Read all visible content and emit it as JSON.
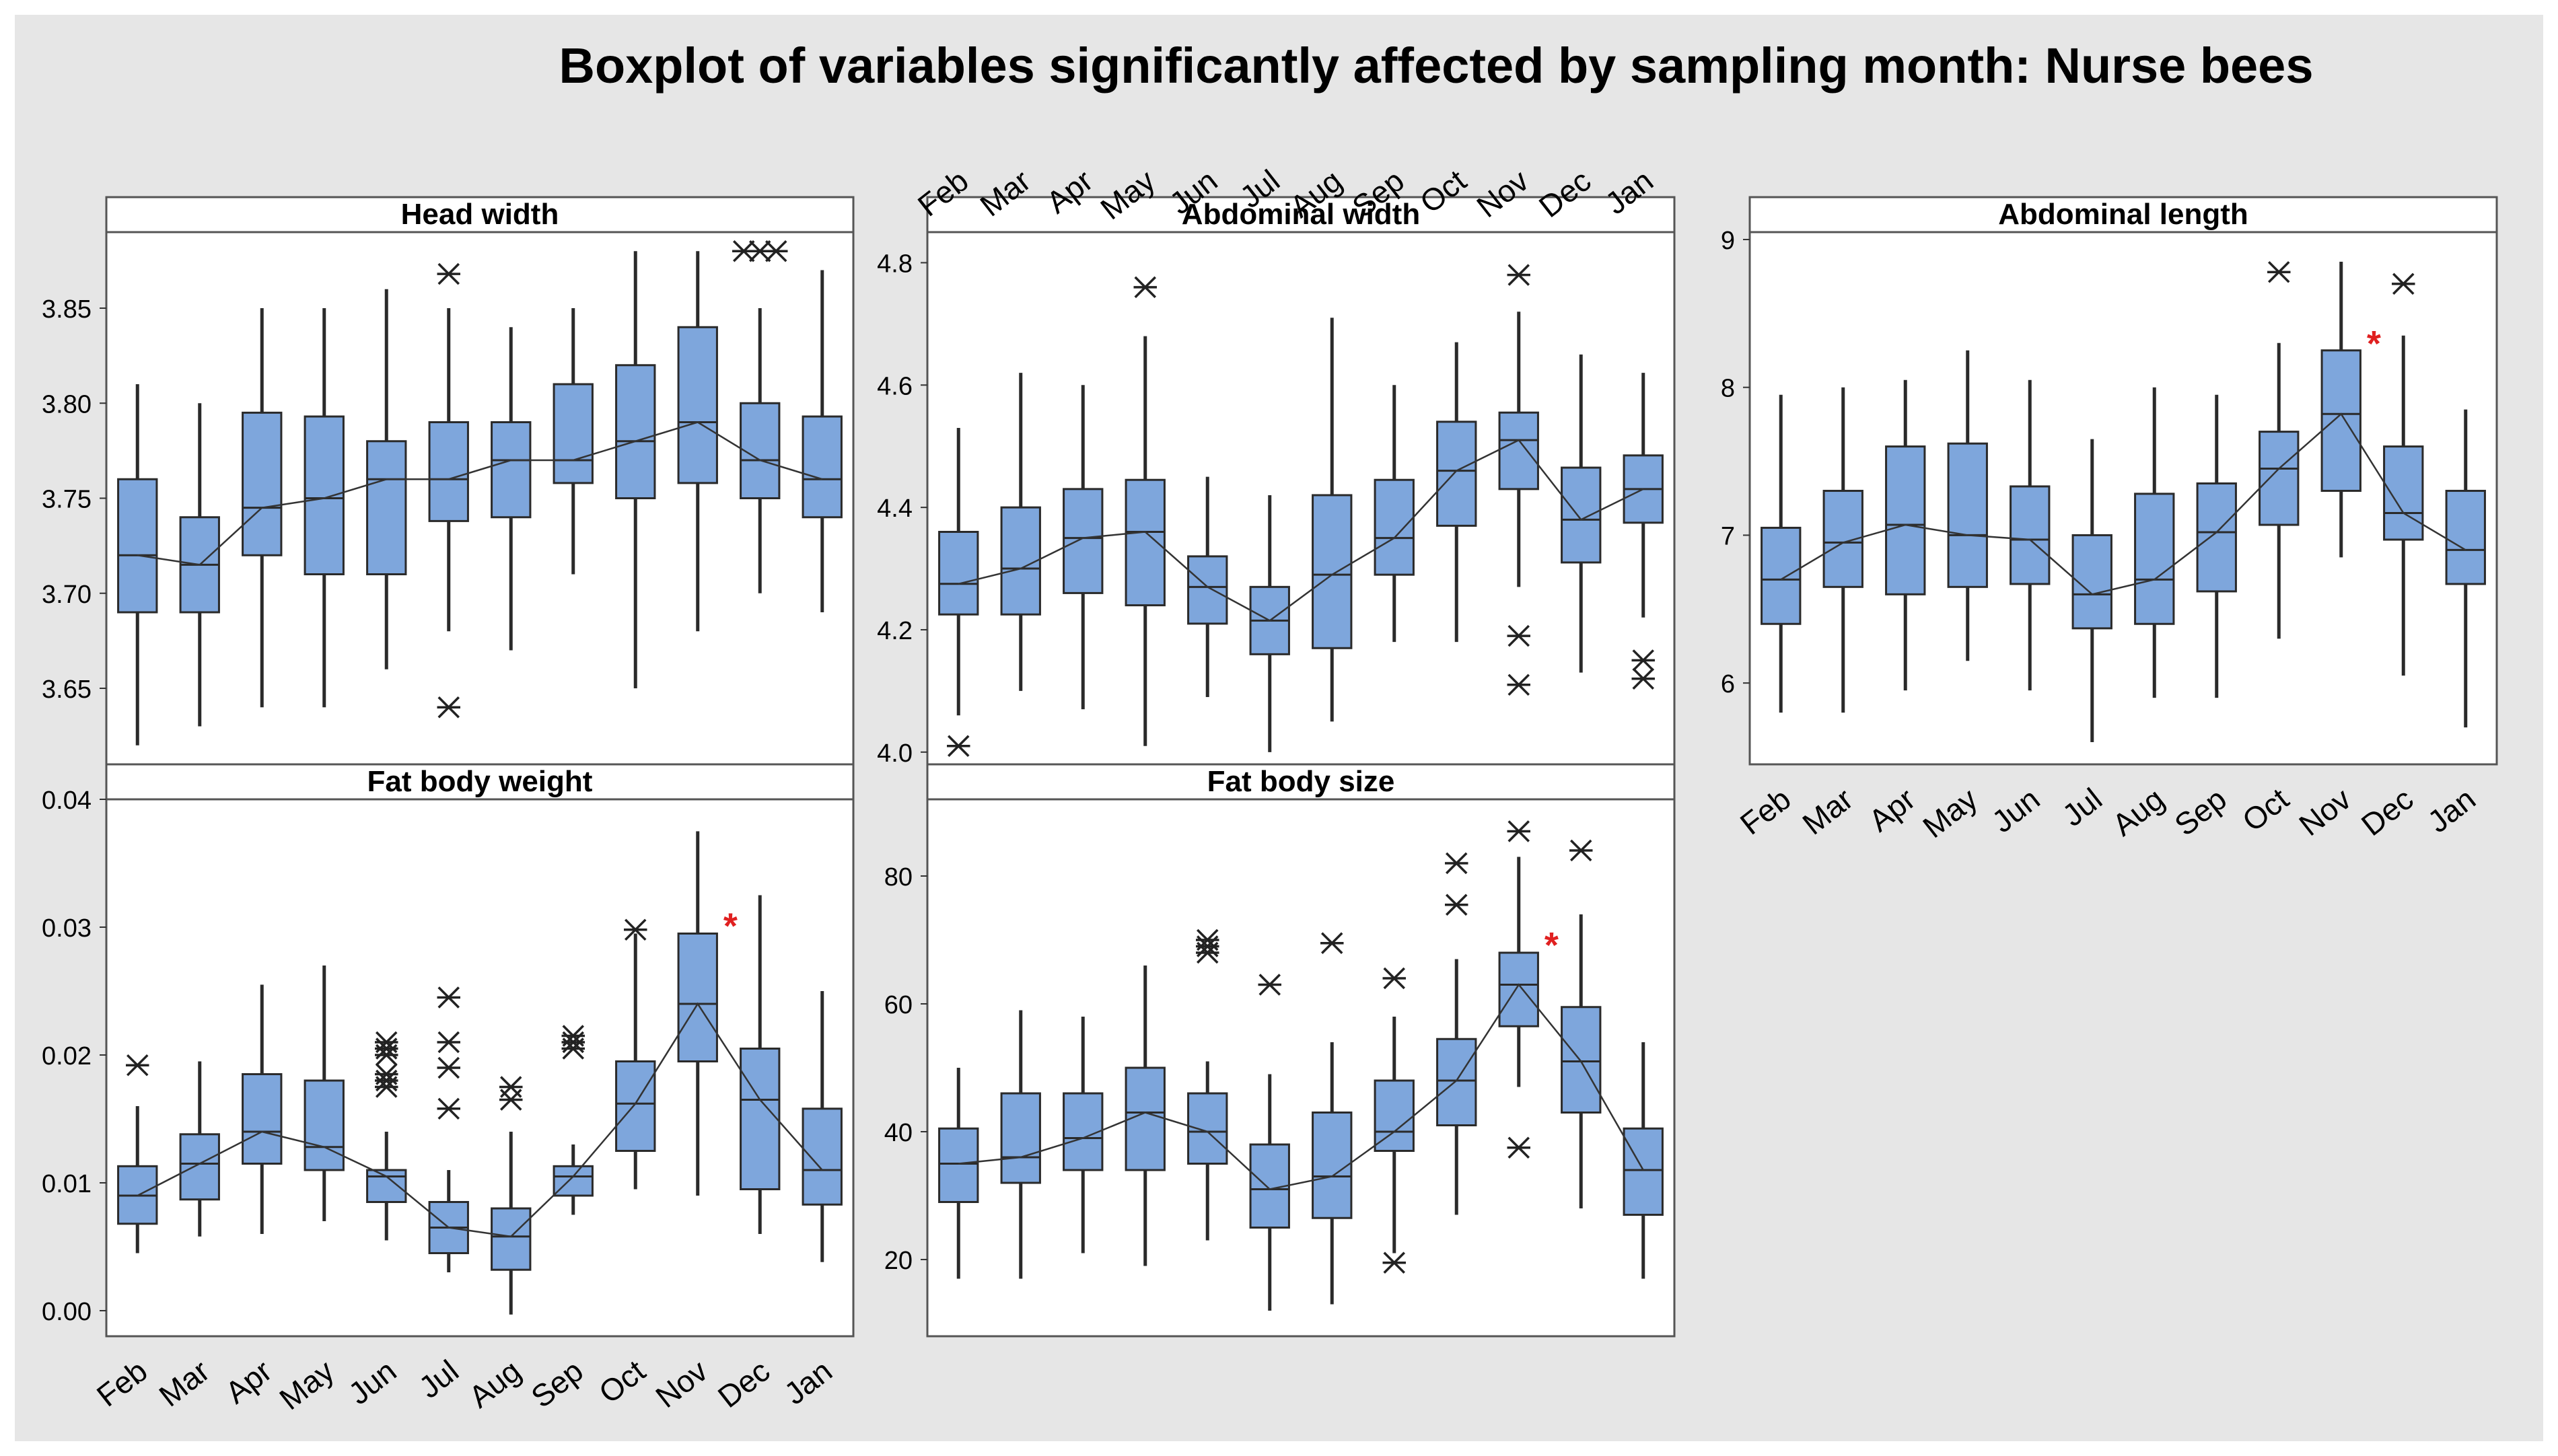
{
  "title": "Boxplot of variables significantly affected by sampling month: Nurse bees",
  "colors": {
    "background": "#e6e6e6",
    "panel": "#ffffff",
    "box_fill": "#7ea6dc",
    "line": "#2a2a2a",
    "highlight": "#e02020"
  },
  "months": [
    "Feb",
    "Mar",
    "Apr",
    "May",
    "Jun",
    "Jul",
    "Aug",
    "Sep",
    "Oct",
    "Nov",
    "Dec",
    "Jan"
  ],
  "chart_data": [
    {
      "type": "box",
      "title": "Head width",
      "ylim": [
        3.61,
        3.89
      ],
      "yticks": [
        3.65,
        3.7,
        3.75,
        3.8,
        3.85
      ],
      "tick_labels": [
        "3.65",
        "3.70",
        "3.75",
        "3.80",
        "3.85"
      ],
      "series": [
        {
          "month": "Feb",
          "min": 3.62,
          "q1": 3.69,
          "median": 3.72,
          "q3": 3.76,
          "max": 3.81,
          "outliers": []
        },
        {
          "month": "Mar",
          "min": 3.63,
          "q1": 3.69,
          "median": 3.715,
          "q3": 3.74,
          "max": 3.8,
          "outliers": []
        },
        {
          "month": "Apr",
          "min": 3.64,
          "q1": 3.72,
          "median": 3.745,
          "q3": 3.795,
          "max": 3.85,
          "outliers": []
        },
        {
          "month": "May",
          "min": 3.64,
          "q1": 3.71,
          "median": 3.75,
          "q3": 3.793,
          "max": 3.85,
          "outliers": []
        },
        {
          "month": "Jun",
          "min": 3.66,
          "q1": 3.71,
          "median": 3.76,
          "q3": 3.78,
          "max": 3.86,
          "outliers": []
        },
        {
          "month": "Jul",
          "min": 3.68,
          "q1": 3.738,
          "median": 3.76,
          "q3": 3.79,
          "max": 3.85,
          "outliers": [
            3.868,
            3.64
          ]
        },
        {
          "month": "Aug",
          "min": 3.67,
          "q1": 3.74,
          "median": 3.77,
          "q3": 3.79,
          "max": 3.84,
          "outliers": []
        },
        {
          "month": "Sep",
          "min": 3.71,
          "q1": 3.758,
          "median": 3.77,
          "q3": 3.81,
          "max": 3.85,
          "outliers": []
        },
        {
          "month": "Oct",
          "min": 3.65,
          "q1": 3.75,
          "median": 3.78,
          "q3": 3.82,
          "max": 3.88,
          "outliers": []
        },
        {
          "month": "Nov",
          "min": 3.68,
          "q1": 3.758,
          "median": 3.79,
          "q3": 3.84,
          "max": 3.88,
          "outliers": []
        },
        {
          "month": "Dec",
          "min": 3.7,
          "q1": 3.75,
          "median": 3.77,
          "q3": 3.8,
          "max": 3.85,
          "outliers": [
            3.88,
            3.88,
            3.88
          ]
        },
        {
          "month": "Jan",
          "min": 3.69,
          "q1": 3.74,
          "median": 3.76,
          "q3": 3.793,
          "max": 3.87,
          "outliers": []
        }
      ],
      "red_outliers": []
    },
    {
      "type": "box",
      "title": "Abdominal width",
      "ylim": [
        3.98,
        4.85
      ],
      "yticks": [
        4.0,
        4.2,
        4.4,
        4.6,
        4.8
      ],
      "tick_labels": [
        "4.0",
        "4.2",
        "4.4",
        "4.6",
        "4.8"
      ],
      "series": [
        {
          "month": "Feb",
          "min": 4.06,
          "q1": 4.225,
          "median": 4.275,
          "q3": 4.36,
          "max": 4.53,
          "outliers": [
            4.01
          ]
        },
        {
          "month": "Mar",
          "min": 4.1,
          "q1": 4.225,
          "median": 4.3,
          "q3": 4.4,
          "max": 4.62,
          "outliers": []
        },
        {
          "month": "Apr",
          "min": 4.07,
          "q1": 4.26,
          "median": 4.35,
          "q3": 4.43,
          "max": 4.6,
          "outliers": []
        },
        {
          "month": "May",
          "min": 4.01,
          "q1": 4.24,
          "median": 4.36,
          "q3": 4.445,
          "max": 4.68,
          "outliers": [
            4.76
          ]
        },
        {
          "month": "Jun",
          "min": 4.09,
          "q1": 4.21,
          "median": 4.27,
          "q3": 4.32,
          "max": 4.45,
          "outliers": []
        },
        {
          "month": "Jul",
          "min": 4.0,
          "q1": 4.16,
          "median": 4.215,
          "q3": 4.27,
          "max": 4.42,
          "outliers": []
        },
        {
          "month": "Aug",
          "min": 4.05,
          "q1": 4.17,
          "median": 4.29,
          "q3": 4.42,
          "max": 4.71,
          "outliers": []
        },
        {
          "month": "Sep",
          "min": 4.18,
          "q1": 4.29,
          "median": 4.35,
          "q3": 4.445,
          "max": 4.6,
          "outliers": []
        },
        {
          "month": "Oct",
          "min": 4.18,
          "q1": 4.37,
          "median": 4.46,
          "q3": 4.54,
          "max": 4.67,
          "outliers": []
        },
        {
          "month": "Nov",
          "min": 4.27,
          "q1": 4.43,
          "median": 4.51,
          "q3": 4.555,
          "max": 4.72,
          "outliers": [
            4.78,
            4.19,
            4.11
          ]
        },
        {
          "month": "Dec",
          "min": 4.13,
          "q1": 4.31,
          "median": 4.38,
          "q3": 4.465,
          "max": 4.65,
          "outliers": []
        },
        {
          "month": "Jan",
          "min": 4.22,
          "q1": 4.375,
          "median": 4.43,
          "q3": 4.485,
          "max": 4.62,
          "outliers": [
            4.15,
            4.12
          ]
        }
      ],
      "red_outliers": []
    },
    {
      "type": "box",
      "title": "Abdominal length",
      "ylim": [
        5.45,
        9.05
      ],
      "yticks": [
        6,
        7,
        8,
        9
      ],
      "tick_labels": [
        "6",
        "7",
        "8",
        "9"
      ],
      "series": [
        {
          "month": "Feb",
          "min": 5.8,
          "q1": 6.4,
          "median": 6.7,
          "q3": 7.05,
          "max": 7.95,
          "outliers": []
        },
        {
          "month": "Mar",
          "min": 5.8,
          "q1": 6.65,
          "median": 6.95,
          "q3": 7.3,
          "max": 8.0,
          "outliers": []
        },
        {
          "month": "Apr",
          "min": 5.95,
          "q1": 6.6,
          "median": 7.07,
          "q3": 7.6,
          "max": 8.05,
          "outliers": []
        },
        {
          "month": "May",
          "min": 6.15,
          "q1": 6.65,
          "median": 7.0,
          "q3": 7.62,
          "max": 8.25,
          "outliers": []
        },
        {
          "month": "Jun",
          "min": 5.95,
          "q1": 6.67,
          "median": 6.97,
          "q3": 7.33,
          "max": 8.05,
          "outliers": []
        },
        {
          "month": "Jul",
          "min": 5.6,
          "q1": 6.37,
          "median": 6.6,
          "q3": 7.0,
          "max": 7.65,
          "outliers": []
        },
        {
          "month": "Aug",
          "min": 5.9,
          "q1": 6.4,
          "median": 6.7,
          "q3": 7.28,
          "max": 8.0,
          "outliers": []
        },
        {
          "month": "Sep",
          "min": 5.9,
          "q1": 6.62,
          "median": 7.02,
          "q3": 7.35,
          "max": 7.95,
          "outliers": []
        },
        {
          "month": "Oct",
          "min": 6.3,
          "q1": 7.07,
          "median": 7.45,
          "q3": 7.7,
          "max": 8.3,
          "outliers": [
            8.78
          ]
        },
        {
          "month": "Nov",
          "min": 6.85,
          "q1": 7.3,
          "median": 7.82,
          "q3": 8.25,
          "max": 8.85,
          "outliers": []
        },
        {
          "month": "Dec",
          "min": 6.05,
          "q1": 6.97,
          "median": 7.15,
          "q3": 7.6,
          "max": 8.35,
          "outliers": [
            8.7
          ]
        },
        {
          "month": "Jan",
          "min": 5.7,
          "q1": 6.67,
          "median": 6.9,
          "q3": 7.3,
          "max": 7.85,
          "outliers": []
        }
      ],
      "red_outliers": [
        {
          "month": "Nov",
          "value": 8.33
        }
      ]
    },
    {
      "type": "box",
      "title": "Fat body weight",
      "ylim": [
        -0.002,
        0.04
      ],
      "yticks": [
        0.0,
        0.01,
        0.02,
        0.03,
        0.04
      ],
      "tick_labels": [
        "0.00",
        "0.01",
        "0.02",
        "0.03",
        "0.04"
      ],
      "series": [
        {
          "month": "Feb",
          "min": 0.0045,
          "q1": 0.0068,
          "median": 0.009,
          "q3": 0.0113,
          "max": 0.016,
          "outliers": [
            0.0192
          ]
        },
        {
          "month": "Mar",
          "min": 0.0058,
          "q1": 0.0087,
          "median": 0.0115,
          "q3": 0.0138,
          "max": 0.0195,
          "outliers": []
        },
        {
          "month": "Apr",
          "min": 0.006,
          "q1": 0.0115,
          "median": 0.014,
          "q3": 0.0185,
          "max": 0.0255,
          "outliers": []
        },
        {
          "month": "May",
          "min": 0.007,
          "q1": 0.011,
          "median": 0.0128,
          "q3": 0.018,
          "max": 0.027,
          "outliers": []
        },
        {
          "month": "Jun",
          "min": 0.0055,
          "q1": 0.0085,
          "median": 0.0105,
          "q3": 0.011,
          "max": 0.014,
          "outliers": [
            0.021,
            0.0205,
            0.02,
            0.0185,
            0.018,
            0.0175
          ]
        },
        {
          "month": "Jul",
          "min": 0.003,
          "q1": 0.0045,
          "median": 0.0065,
          "q3": 0.0085,
          "max": 0.011,
          "outliers": [
            0.0245,
            0.021,
            0.019,
            0.0158
          ]
        },
        {
          "month": "Aug",
          "min": -0.0003,
          "q1": 0.0032,
          "median": 0.0058,
          "q3": 0.008,
          "max": 0.014,
          "outliers": [
            0.0175,
            0.0165
          ]
        },
        {
          "month": "Sep",
          "min": 0.0075,
          "q1": 0.009,
          "median": 0.0105,
          "q3": 0.0113,
          "max": 0.013,
          "outliers": [
            0.0215,
            0.021,
            0.0205
          ]
        },
        {
          "month": "Oct",
          "min": 0.0095,
          "q1": 0.0125,
          "median": 0.0162,
          "q3": 0.0195,
          "max": 0.0295,
          "outliers": [
            0.0298
          ]
        },
        {
          "month": "Nov",
          "min": 0.009,
          "q1": 0.0195,
          "median": 0.024,
          "q3": 0.0295,
          "max": 0.0375,
          "outliers": []
        },
        {
          "month": "Dec",
          "min": 0.006,
          "q1": 0.0095,
          "median": 0.0165,
          "q3": 0.0205,
          "max": 0.0325,
          "outliers": []
        },
        {
          "month": "Jan",
          "min": 0.0038,
          "q1": 0.0083,
          "median": 0.011,
          "q3": 0.0158,
          "max": 0.025,
          "outliers": []
        }
      ],
      "red_outliers": [
        {
          "month": "Nov",
          "value": 0.0305
        }
      ]
    },
    {
      "type": "box",
      "title": "Fat body size",
      "ylim": [
        8,
        92
      ],
      "yticks": [
        20,
        40,
        60,
        80
      ],
      "tick_labels": [
        "20",
        "40",
        "60",
        "80"
      ],
      "series": [
        {
          "month": "Feb",
          "min": 17,
          "q1": 29,
          "median": 35,
          "q3": 40.5,
          "max": 50,
          "outliers": []
        },
        {
          "month": "Mar",
          "min": 17,
          "q1": 32,
          "median": 36,
          "q3": 46,
          "max": 59,
          "outliers": []
        },
        {
          "month": "Apr",
          "min": 21,
          "q1": 34,
          "median": 39,
          "q3": 46,
          "max": 58,
          "outliers": []
        },
        {
          "month": "May",
          "min": 19,
          "q1": 34,
          "median": 43,
          "q3": 50,
          "max": 66,
          "outliers": []
        },
        {
          "month": "Jun",
          "min": 23,
          "q1": 35,
          "median": 40,
          "q3": 46,
          "max": 51,
          "outliers": [
            70,
            69,
            68
          ]
        },
        {
          "month": "Jul",
          "min": 12,
          "q1": 25,
          "median": 31,
          "q3": 38,
          "max": 49,
          "outliers": [
            63
          ]
        },
        {
          "month": "Aug",
          "min": 13,
          "q1": 26.5,
          "median": 33,
          "q3": 43,
          "max": 54,
          "outliers": [
            69.5
          ]
        },
        {
          "month": "Sep",
          "min": 21,
          "q1": 37,
          "median": 40,
          "q3": 48,
          "max": 58,
          "outliers": [
            64,
            19.5
          ]
        },
        {
          "month": "Oct",
          "min": 27,
          "q1": 41,
          "median": 48,
          "q3": 54.5,
          "max": 67,
          "outliers": [
            82,
            75.5
          ]
        },
        {
          "month": "Nov",
          "min": 47,
          "q1": 56.5,
          "median": 63,
          "q3": 68,
          "max": 83,
          "outliers": [
            87,
            37.5
          ]
        },
        {
          "month": "Dec",
          "min": 28,
          "q1": 43,
          "median": 51,
          "q3": 59.5,
          "max": 74,
          "outliers": [
            84
          ]
        },
        {
          "month": "Jan",
          "min": 17,
          "q1": 27,
          "median": 34,
          "q3": 40.5,
          "max": 54,
          "outliers": []
        }
      ],
      "red_outliers": [
        {
          "month": "Nov",
          "value": 70
        }
      ]
    }
  ]
}
